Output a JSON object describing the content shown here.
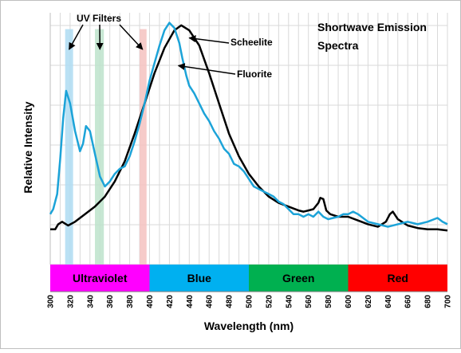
{
  "chart_data": {
    "type": "line",
    "title_line1": "Shortwave Emission",
    "title_line2": "Spectra",
    "xlabel": "Wavelength (nm)",
    "ylabel": "Relative Intensity",
    "xlim": [
      300,
      700
    ],
    "ylim": [
      0,
      1
    ],
    "grid": true,
    "x_ticks": [
      "300",
      "320",
      "340",
      "360",
      "380",
      "400",
      "420",
      "440",
      "460",
      "480",
      "500",
      "520",
      "540",
      "560",
      "580",
      "600",
      "620",
      "640",
      "660",
      "680",
      "700"
    ],
    "series": [
      {
        "name": "Scheelite",
        "color": "#000000",
        "x": [
          300,
          305,
          308,
          312,
          318,
          325,
          335,
          345,
          355,
          365,
          375,
          385,
          395,
          405,
          415,
          425,
          432,
          440,
          450,
          460,
          470,
          480,
          490,
          500,
          510,
          520,
          530,
          540,
          550,
          555,
          560,
          565,
          570,
          572,
          575,
          578,
          582,
          590,
          600,
          610,
          620,
          630,
          638,
          642,
          645,
          650,
          660,
          670,
          680,
          690,
          700
        ],
        "y": [
          0.14,
          0.14,
          0.16,
          0.17,
          0.155,
          0.17,
          0.2,
          0.23,
          0.27,
          0.33,
          0.41,
          0.52,
          0.64,
          0.76,
          0.86,
          0.93,
          0.95,
          0.93,
          0.87,
          0.76,
          0.64,
          0.52,
          0.43,
          0.36,
          0.31,
          0.27,
          0.245,
          0.23,
          0.215,
          0.21,
          0.215,
          0.22,
          0.245,
          0.265,
          0.26,
          0.215,
          0.2,
          0.19,
          0.19,
          0.175,
          0.16,
          0.15,
          0.17,
          0.2,
          0.21,
          0.18,
          0.155,
          0.145,
          0.14,
          0.14,
          0.135
        ]
      },
      {
        "name": "Fluorite",
        "color": "#1ca3d8",
        "x": [
          300,
          303,
          307,
          310,
          313,
          316,
          320,
          325,
          330,
          333,
          336,
          340,
          345,
          350,
          355,
          360,
          365,
          370,
          375,
          380,
          385,
          390,
          395,
          400,
          405,
          410,
          415,
          420,
          425,
          430,
          433,
          437,
          440,
          445,
          450,
          455,
          460,
          465,
          470,
          475,
          480,
          485,
          490,
          495,
          500,
          505,
          510,
          515,
          520,
          525,
          530,
          535,
          540,
          545,
          550,
          555,
          560,
          565,
          570,
          575,
          580,
          585,
          590,
          595,
          600,
          605,
          610,
          620,
          630,
          640,
          650,
          660,
          670,
          680,
          690,
          695,
          700
        ],
        "y": [
          0.2,
          0.22,
          0.28,
          0.42,
          0.58,
          0.69,
          0.64,
          0.53,
          0.45,
          0.48,
          0.55,
          0.53,
          0.44,
          0.35,
          0.31,
          0.33,
          0.36,
          0.38,
          0.39,
          0.43,
          0.49,
          0.56,
          0.64,
          0.73,
          0.8,
          0.87,
          0.93,
          0.96,
          0.94,
          0.88,
          0.82,
          0.75,
          0.71,
          0.68,
          0.64,
          0.6,
          0.57,
          0.53,
          0.5,
          0.46,
          0.44,
          0.4,
          0.39,
          0.37,
          0.34,
          0.31,
          0.3,
          0.29,
          0.28,
          0.27,
          0.25,
          0.24,
          0.22,
          0.2,
          0.2,
          0.19,
          0.2,
          0.19,
          0.21,
          0.19,
          0.18,
          0.185,
          0.19,
          0.2,
          0.2,
          0.21,
          0.2,
          0.17,
          0.16,
          0.15,
          0.16,
          0.17,
          0.16,
          0.17,
          0.185,
          0.17,
          0.16
        ]
      }
    ],
    "annotations": [
      {
        "text": "UV Filters"
      },
      {
        "text": "Scheelite"
      },
      {
        "text": "Fluorite"
      }
    ],
    "uv_filters": [
      {
        "start": 315,
        "end": 323,
        "color": "#aedcf2"
      },
      {
        "start": 345,
        "end": 354,
        "color": "#bde3cb"
      },
      {
        "start": 390,
        "end": 397,
        "color": "#f4c2c0"
      }
    ],
    "bands": [
      {
        "label": "Ultraviolet",
        "start": 300,
        "end": 400,
        "color": "#ff00ff"
      },
      {
        "label": "Blue",
        "start": 400,
        "end": 500,
        "color": "#00b0f0"
      },
      {
        "label": "Green",
        "start": 500,
        "end": 600,
        "color": "#00b050"
      },
      {
        "label": "Red",
        "start": 600,
        "end": 700,
        "color": "#ff0000"
      }
    ]
  }
}
